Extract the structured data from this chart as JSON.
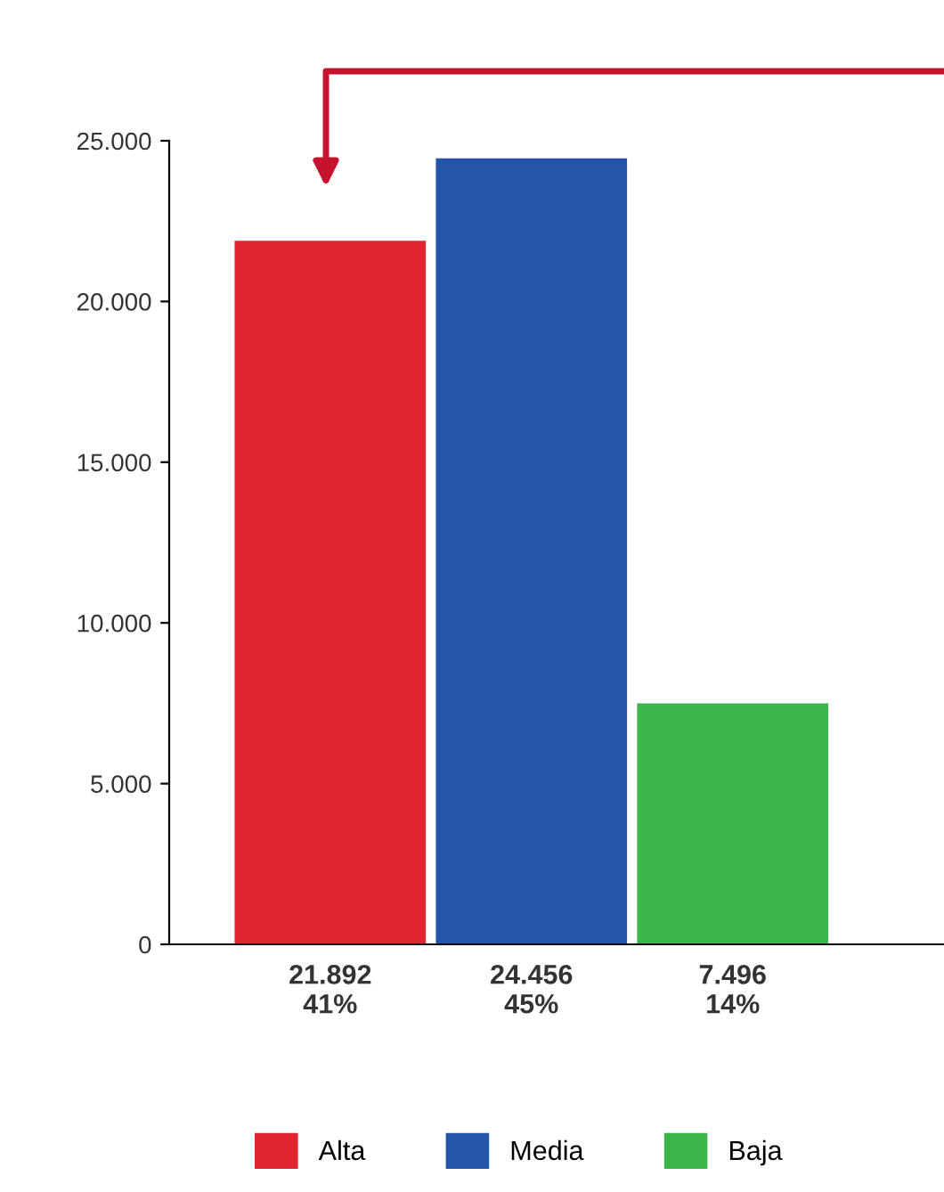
{
  "chart_data": {
    "type": "bar",
    "categories": [
      "21.892\n41%",
      "24.456\n45%",
      "7.496\n14%"
    ],
    "series": [
      {
        "name": "Alta",
        "color": "#e0262e",
        "values": [
          21892,
          null,
          null
        ]
      },
      {
        "name": "Media",
        "color": "#2356a8",
        "values": [
          null,
          24456,
          null
        ]
      },
      {
        "name": "Baja",
        "color": "#3cb54a",
        "values": [
          null,
          null,
          7496
        ]
      }
    ],
    "ylim": [
      0,
      25000
    ],
    "yticks": [
      0,
      {
        "value": 5000,
        "label": "5.000"
      },
      {
        "value": 10000,
        "label": "10.000"
      },
      {
        "value": 15000,
        "label": "15.000"
      },
      {
        "value": 20000,
        "label": "20.000"
      },
      {
        "value": 25000,
        "label": "25.000"
      }
    ],
    "grid": false,
    "legend": "bottom"
  }
}
